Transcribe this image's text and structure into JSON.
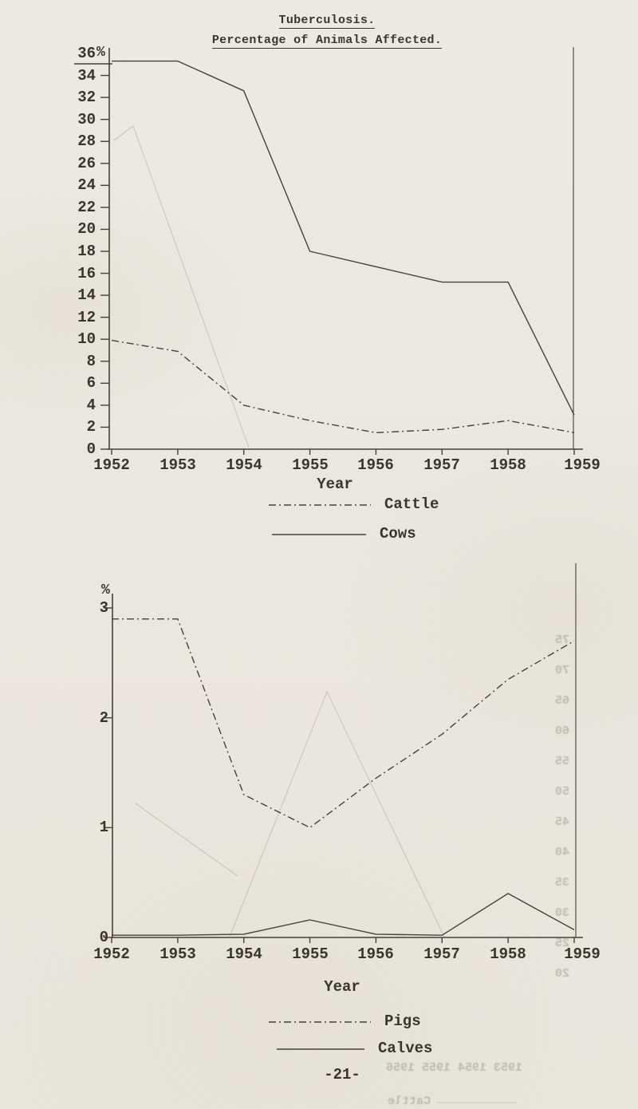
{
  "page": {
    "title": "Tuberculosis.",
    "subtitle": "Percentage of Animals Affected.",
    "page_number": "-21-",
    "unit_sign": "%"
  },
  "colors": {
    "paper": "#ebe8e1",
    "ink": "#3a362e",
    "line": "#45413a",
    "ghost": "#7d7463"
  },
  "chart_data": [
    {
      "type": "line",
      "title": "Tuberculosis. Percentage of Animals Affected.",
      "xlabel": "Year",
      "ylabel": "%",
      "x": [
        1952,
        1953,
        1954,
        1955,
        1956,
        1957,
        1958,
        1959
      ],
      "ylim": [
        0,
        36
      ],
      "ytick_step": 2,
      "grid": false,
      "legend_position": "below",
      "series": [
        {
          "name": "Cattle",
          "line_style": "dash-dot",
          "values": [
            9.9,
            8.9,
            4.0,
            2.6,
            1.5,
            1.8,
            2.6,
            1.5
          ]
        },
        {
          "name": "Cows",
          "line_style": "solid",
          "values": [
            35.3,
            35.3,
            32.6,
            18.0,
            16.6,
            15.2,
            15.2,
            3.1
          ]
        }
      ]
    },
    {
      "type": "line",
      "title": "",
      "xlabel": "Year",
      "ylabel": "%",
      "x": [
        1952,
        1953,
        1954,
        1955,
        1956,
        1957,
        1958,
        1959
      ],
      "ylim": [
        0,
        3
      ],
      "ytick_step": 1,
      "grid": false,
      "legend_position": "below",
      "series": [
        {
          "name": "Pigs",
          "line_style": "dash-dot",
          "values": [
            2.9,
            2.9,
            1.3,
            1.0,
            1.45,
            1.85,
            2.35,
            2.7
          ]
        },
        {
          "name": "Calves",
          "line_style": "solid",
          "values": [
            0.02,
            0.02,
            0.03,
            0.16,
            0.03,
            0.02,
            0.4,
            0.07
          ]
        }
      ]
    }
  ],
  "bleed_through": {
    "ghost_axis_labels": [
      "75",
      "70",
      "65",
      "60",
      "55",
      "50",
      "45",
      "40",
      "35",
      "30",
      "25",
      "20"
    ],
    "ghost_year_row": "1953     1954     1955     1956",
    "ghost_legend_word": "Cattle"
  }
}
